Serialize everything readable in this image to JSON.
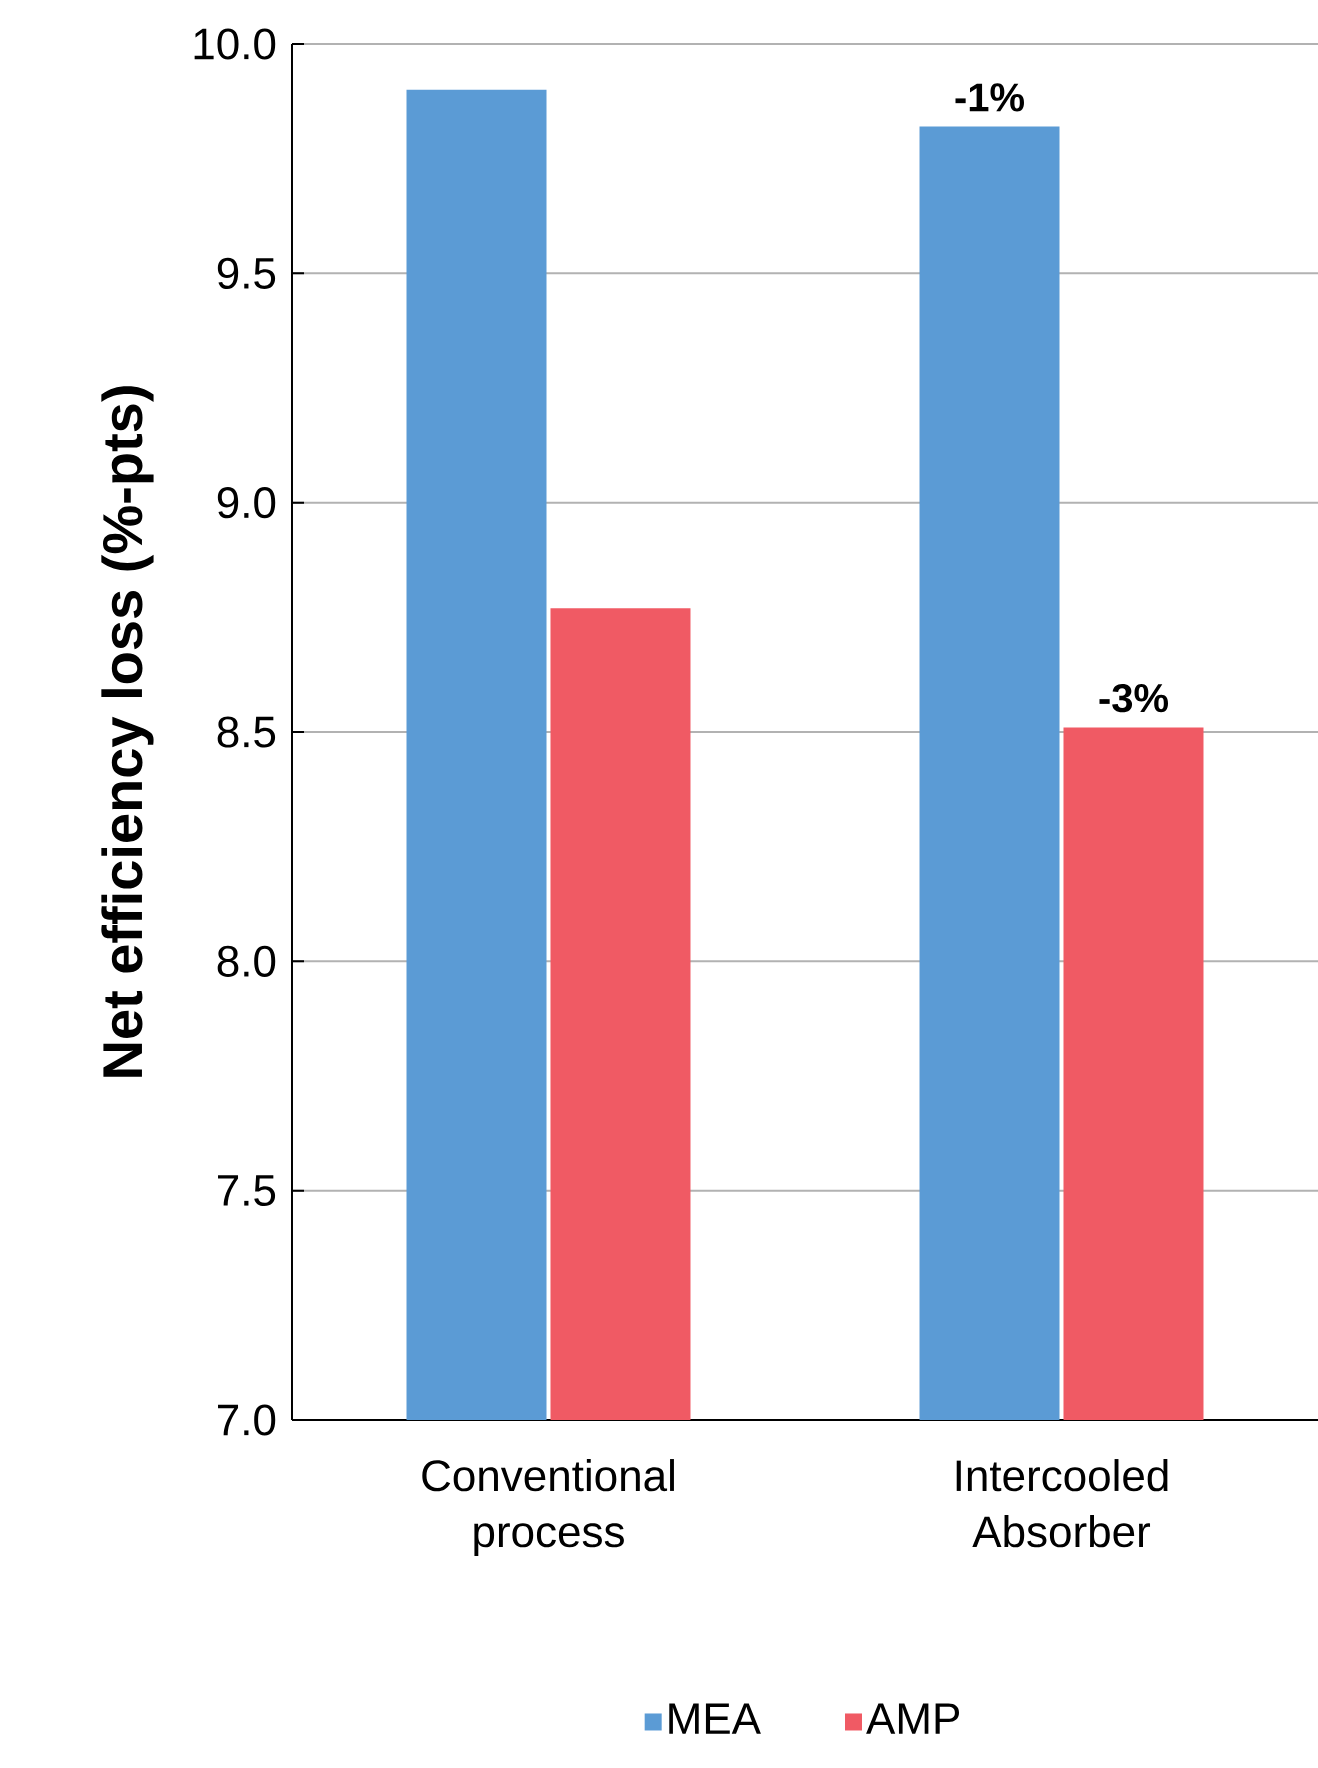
{
  "chart_data": {
    "type": "bar",
    "ylabel": "Net efficiency loss (%-pts)",
    "categories": [
      "Conventional process",
      "Intercooled Absorber"
    ],
    "series": [
      {
        "name": "MEA",
        "color": "#5b9bd5",
        "values": [
          9.9,
          9.82
        ]
      },
      {
        "name": "AMP",
        "color": "#f05a64",
        "values": [
          8.77,
          8.51
        ]
      }
    ],
    "annotations": [
      {
        "text": "-1%",
        "x": "Intercooled Absorber",
        "y": 9.82
      },
      {
        "text": "-3%",
        "x": "Intercooled Absorber",
        "y": 8.51
      }
    ],
    "ylim": [
      7.0,
      10.0
    ],
    "yticks": [
      {
        "value": 7.0,
        "label": "7.0"
      },
      {
        "value": 7.5,
        "label": "7.5"
      },
      {
        "value": 8.0,
        "label": "8.0"
      },
      {
        "value": 8.5,
        "label": "8.5"
      },
      {
        "value": 9.0,
        "label": "9.0"
      },
      {
        "value": 9.5,
        "label": "9.5"
      },
      {
        "value": 10.0,
        "label": "10.0"
      }
    ],
    "grid": "y",
    "legend": "bottom"
  }
}
